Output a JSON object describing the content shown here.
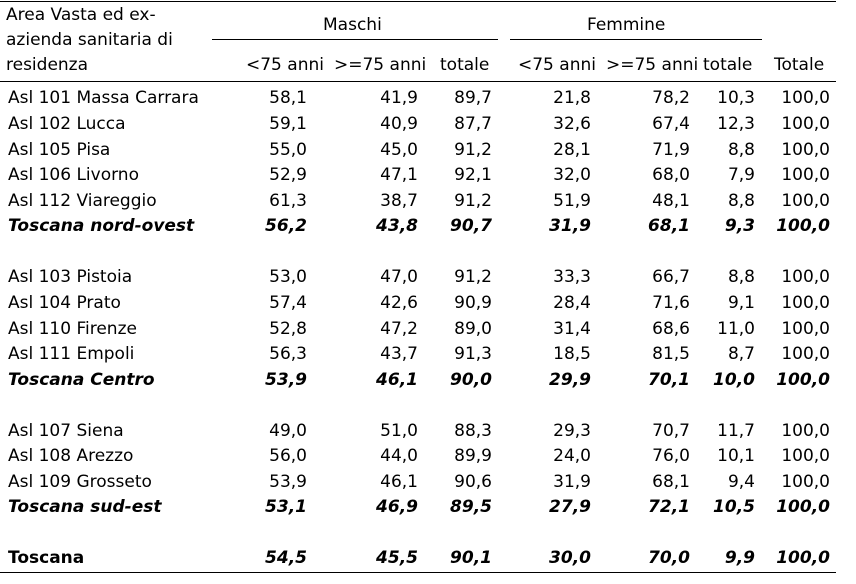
{
  "header": {
    "area_lines": [
      "Area Vasta ed ex-",
      "azienda sanitaria di",
      "residenza"
    ],
    "group_maschi": "Maschi",
    "group_femmine": "Femmine",
    "cols": [
      "<75 anni",
      ">=75 anni",
      "totale",
      "<75 anni",
      ">=75 anni",
      "totale",
      "Totale"
    ]
  },
  "rows": [
    {
      "label": "Asl 101 Massa Carrara",
      "v": [
        "58,1",
        "41,9",
        "89,7",
        "21,8",
        "78,2",
        "10,3",
        "100,0"
      ]
    },
    {
      "label": "Asl 102 Lucca",
      "v": [
        "59,1",
        "40,9",
        "87,7",
        "32,6",
        "67,4",
        "12,3",
        "100,0"
      ]
    },
    {
      "label": "Asl 105 Pisa",
      "v": [
        "55,0",
        "45,0",
        "91,2",
        "28,1",
        "71,9",
        "8,8",
        "100,0"
      ]
    },
    {
      "label": "Asl 106 Livorno",
      "v": [
        "52,9",
        "47,1",
        "92,1",
        "32,0",
        "68,0",
        "7,9",
        "100,0"
      ]
    },
    {
      "label": "Asl 112 Viareggio",
      "v": [
        "61,3",
        "38,7",
        "91,2",
        "51,9",
        "48,1",
        "8,8",
        "100,0"
      ]
    },
    {
      "label": "Toscana nord-ovest",
      "v": [
        "56,2",
        "43,8",
        "90,7",
        "31,9",
        "68,1",
        "9,3",
        "100,0"
      ]
    },
    {
      "label": "Asl 103 Pistoia",
      "v": [
        "53,0",
        "47,0",
        "91,2",
        "33,3",
        "66,7",
        "8,8",
        "100,0"
      ]
    },
    {
      "label": "Asl 104 Prato",
      "v": [
        "57,4",
        "42,6",
        "90,9",
        "28,4",
        "71,6",
        "9,1",
        "100,0"
      ]
    },
    {
      "label": "Asl 110 Firenze",
      "v": [
        "52,8",
        "47,2",
        "89,0",
        "31,4",
        "68,6",
        "11,0",
        "100,0"
      ]
    },
    {
      "label": "Asl 111 Empoli",
      "v": [
        "56,3",
        "43,7",
        "91,3",
        "18,5",
        "81,5",
        "8,7",
        "100,0"
      ]
    },
    {
      "label": "Toscana Centro",
      "v": [
        "53,9",
        "46,1",
        "90,0",
        "29,9",
        "70,1",
        "10,0",
        "100,0"
      ]
    },
    {
      "label": "Asl 107 Siena",
      "v": [
        "49,0",
        "51,0",
        "88,3",
        "29,3",
        "70,7",
        "11,7",
        "100,0"
      ]
    },
    {
      "label": "Asl 108 Arezzo",
      "v": [
        "56,0",
        "44,0",
        "89,9",
        "24,0",
        "76,0",
        "10,1",
        "100,0"
      ]
    },
    {
      "label": "Asl 109 Grosseto",
      "v": [
        "53,9",
        "46,1",
        "90,6",
        "31,9",
        "68,1",
        "9,4",
        "100,0"
      ]
    },
    {
      "label": "Toscana sud-est",
      "v": [
        "53,1",
        "46,9",
        "89,5",
        "27,9",
        "72,1",
        "10,5",
        "100,0"
      ]
    },
    {
      "label": "Toscana",
      "v": [
        "54,5",
        "45,5",
        "90,1",
        "30,0",
        "70,0",
        "9,9",
        "100,0"
      ]
    }
  ]
}
